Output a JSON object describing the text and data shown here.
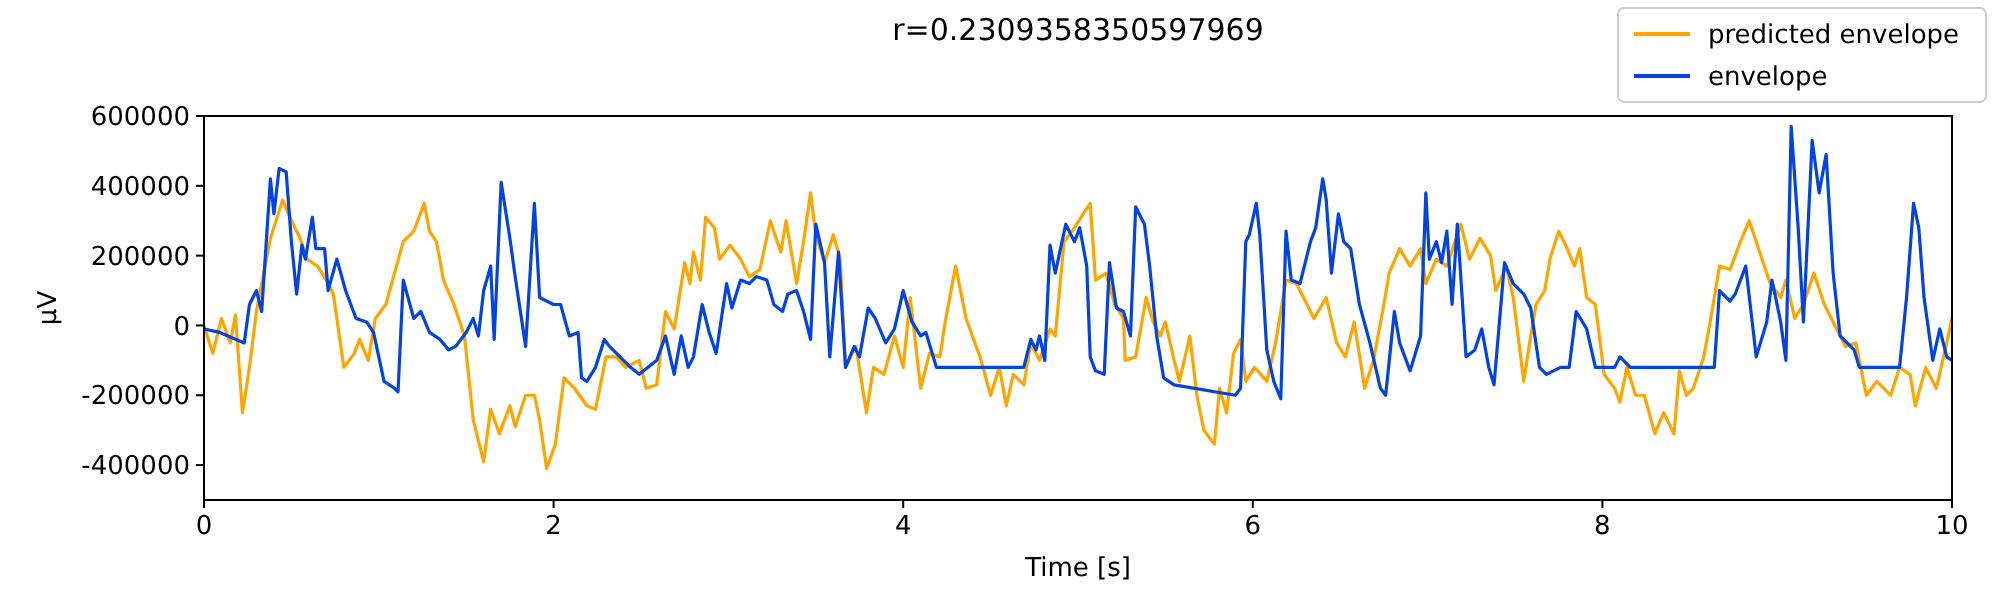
{
  "chart_data": {
    "type": "line",
    "title": "r=0.2309358350597969",
    "xlabel": "Time [s]",
    "ylabel": "µV",
    "xlim": [
      0,
      10
    ],
    "xticks": [
      0,
      2,
      4,
      6,
      8,
      10
    ],
    "ylim": [
      -500000,
      600000
    ],
    "yticks": [
      -400000,
      -200000,
      0,
      200000,
      400000,
      600000
    ],
    "legend": "top right",
    "grid": false,
    "line_style": "solid",
    "marker": "none",
    "series": [
      {
        "name": "predicted envelope",
        "color": "#ffa500",
        "x": [
          0,
          0.05,
          0.1,
          0.15,
          0.18,
          0.22,
          0.26,
          0.3,
          0.38,
          0.45,
          0.5,
          0.55,
          0.59,
          0.65,
          0.7,
          0.74,
          0.78,
          0.8,
          0.86,
          0.89,
          0.94,
          0.98,
          1.04,
          1.14,
          1.2,
          1.26,
          1.29,
          1.33,
          1.37,
          1.43,
          1.49,
          1.54,
          1.6,
          1.64,
          1.69,
          1.75,
          1.78,
          1.84,
          1.89,
          1.92,
          1.96,
          2.01,
          2.06,
          2.12,
          2.19,
          2.24,
          2.3,
          2.36,
          2.41,
          2.49,
          2.53,
          2.59,
          2.64,
          2.69,
          2.75,
          2.78,
          2.8,
          2.84,
          2.87,
          2.92,
          2.95,
          3.01,
          3.07,
          3.12,
          3.18,
          3.24,
          3.3,
          3.33,
          3.39,
          3.43,
          3.47,
          3.5,
          3.55,
          3.6,
          3.64,
          3.67,
          3.73,
          3.79,
          3.83,
          3.89,
          3.95,
          4.0,
          4.04,
          4.1,
          4.15,
          4.21,
          4.24,
          4.3,
          4.36,
          4.41,
          4.44,
          4.5,
          4.55,
          4.59,
          4.63,
          4.69,
          4.73,
          4.78,
          4.84,
          4.87,
          4.92,
          4.98,
          5.03,
          5.07,
          5.1,
          5.16,
          5.21,
          5.26,
          5.27,
          5.33,
          5.39,
          5.43,
          5.47,
          5.5,
          5.55,
          5.58,
          5.64,
          5.68,
          5.72,
          5.78,
          5.81,
          5.85,
          5.89,
          5.93,
          5.96,
          6.01,
          6.08,
          6.13,
          6.19,
          6.25,
          6.3,
          6.35,
          6.42,
          6.48,
          6.53,
          6.58,
          6.64,
          6.69,
          6.75,
          6.78,
          6.84,
          6.9,
          6.96,
          6.99,
          7.05,
          7.11,
          7.19,
          7.24,
          7.3,
          7.36,
          7.39,
          7.45,
          7.49,
          7.55,
          7.59,
          7.62,
          7.67,
          7.7,
          7.75,
          7.79,
          7.84,
          7.87,
          7.91,
          7.96,
          8.01,
          8.07,
          8.1,
          8.14,
          8.19,
          8.24,
          8.3,
          8.35,
          8.41,
          8.44,
          8.48,
          8.52,
          8.58,
          8.62,
          8.67,
          8.73,
          8.79,
          8.84,
          8.9,
          8.96,
          9.02,
          9.05,
          9.1,
          9.15,
          9.21,
          9.27,
          9.32,
          9.39,
          9.45,
          9.51,
          9.57,
          9.65,
          9.7,
          9.76,
          9.79,
          9.85,
          9.91,
          9.97,
          10.0
        ],
        "values": [
          0,
          -80000,
          20000,
          -50000,
          30000,
          -250000,
          -120000,
          40000,
          250000,
          360000,
          300000,
          250000,
          190000,
          170000,
          130000,
          90000,
          -50000,
          -120000,
          -80000,
          -40000,
          -100000,
          20000,
          60000,
          240000,
          270000,
          350000,
          270000,
          240000,
          130000,
          60000,
          -30000,
          -270000,
          -390000,
          -240000,
          -310000,
          -230000,
          -290000,
          -200000,
          -200000,
          -270000,
          -410000,
          -340000,
          -150000,
          -180000,
          -230000,
          -240000,
          -90000,
          -90000,
          -120000,
          -100000,
          -180000,
          -170000,
          40000,
          -10000,
          180000,
          120000,
          210000,
          130000,
          310000,
          280000,
          190000,
          230000,
          190000,
          140000,
          160000,
          300000,
          210000,
          300000,
          120000,
          240000,
          380000,
          260000,
          180000,
          260000,
          190000,
          -120000,
          -60000,
          -250000,
          -120000,
          -140000,
          -30000,
          -120000,
          80000,
          -180000,
          -80000,
          -90000,
          10000,
          170000,
          20000,
          -50000,
          -90000,
          -200000,
          -120000,
          -230000,
          -140000,
          -170000,
          -50000,
          -100000,
          -10000,
          -30000,
          240000,
          280000,
          320000,
          350000,
          130000,
          150000,
          60000,
          20000,
          -100000,
          -90000,
          80000,
          10000,
          -30000,
          10000,
          -100000,
          -160000,
          -30000,
          -200000,
          -300000,
          -340000,
          -180000,
          -250000,
          -80000,
          -40000,
          -160000,
          -120000,
          -160000,
          -50000,
          130000,
          120000,
          70000,
          20000,
          80000,
          -50000,
          -90000,
          10000,
          -180000,
          -100000,
          60000,
          150000,
          220000,
          170000,
          220000,
          120000,
          190000,
          170000,
          290000,
          190000,
          250000,
          200000,
          100000,
          170000,
          80000,
          -160000,
          -30000,
          60000,
          100000,
          190000,
          270000,
          230000,
          170000,
          220000,
          80000,
          60000,
          -140000,
          -180000,
          -220000,
          -120000,
          -200000,
          -200000,
          -310000,
          -250000,
          -310000,
          -130000,
          -200000,
          -180000,
          -90000,
          20000,
          170000,
          160000,
          240000,
          300000,
          210000,
          120000,
          80000,
          130000,
          20000,
          60000,
          150000,
          60000,
          10000,
          -60000,
          -50000,
          -200000,
          -160000,
          -200000,
          -120000,
          -140000,
          -230000,
          -120000,
          -180000,
          -50000,
          20000
        ]
      },
      {
        "name": "envelope",
        "color": "#0343df",
        "x": [
          0,
          0.09,
          0.23,
          0.26,
          0.3,
          0.33,
          0.38,
          0.4,
          0.43,
          0.47,
          0.5,
          0.53,
          0.56,
          0.58,
          0.62,
          0.64,
          0.69,
          0.71,
          0.76,
          0.81,
          0.87,
          0.93,
          0.97,
          1.03,
          1.09,
          1.11,
          1.14,
          1.2,
          1.24,
          1.29,
          1.35,
          1.4,
          1.44,
          1.5,
          1.54,
          1.57,
          1.6,
          1.64,
          1.66,
          1.7,
          1.75,
          1.78,
          1.84,
          1.89,
          1.92,
          2.0,
          2.04,
          2.09,
          2.14,
          2.16,
          2.19,
          2.24,
          2.29,
          2.32,
          2.38,
          2.44,
          2.49,
          2.59,
          2.64,
          2.69,
          2.73,
          2.77,
          2.8,
          2.85,
          2.89,
          2.93,
          2.99,
          3.02,
          3.07,
          3.12,
          3.16,
          3.22,
          3.26,
          3.31,
          3.34,
          3.39,
          3.43,
          3.47,
          3.5,
          3.55,
          3.58,
          3.63,
          3.67,
          3.72,
          3.75,
          3.8,
          3.84,
          3.9,
          3.95,
          4.0,
          4.05,
          4.1,
          4.13,
          4.19,
          4.23,
          4.69,
          4.73,
          4.76,
          4.78,
          4.81,
          4.84,
          4.87,
          4.93,
          4.98,
          5.01,
          5.05,
          5.07,
          5.1,
          5.15,
          5.18,
          5.22,
          5.26,
          5.3,
          5.33,
          5.38,
          5.41,
          5.45,
          5.49,
          5.55,
          5.9,
          5.93,
          5.96,
          5.98,
          6.02,
          6.04,
          6.08,
          6.12,
          6.16,
          6.19,
          6.22,
          6.27,
          6.33,
          6.36,
          6.4,
          6.42,
          6.45,
          6.49,
          6.52,
          6.56,
          6.61,
          6.67,
          6.73,
          6.76,
          6.81,
          6.84,
          6.9,
          6.96,
          6.99,
          7.01,
          7.05,
          7.08,
          7.11,
          7.14,
          7.17,
          7.22,
          7.27,
          7.31,
          7.35,
          7.38,
          7.44,
          7.49,
          7.55,
          7.59,
          7.64,
          7.68,
          7.76,
          7.81,
          7.85,
          7.91,
          7.96,
          8.07,
          8.1,
          8.16,
          8.64,
          8.67,
          8.73,
          8.76,
          8.82,
          8.88,
          8.94,
          8.97,
          9.02,
          9.05,
          9.08,
          9.12,
          9.15,
          9.2,
          9.24,
          9.28,
          9.32,
          9.36,
          9.44,
          9.47,
          9.7,
          9.74,
          9.78,
          9.81,
          9.84,
          9.89,
          9.93,
          9.97,
          10.0
        ],
        "values": [
          -10000,
          -20000,
          -50000,
          60000,
          100000,
          40000,
          420000,
          320000,
          450000,
          440000,
          240000,
          90000,
          230000,
          190000,
          310000,
          220000,
          220000,
          100000,
          190000,
          100000,
          20000,
          10000,
          -20000,
          -160000,
          -180000,
          -190000,
          130000,
          20000,
          40000,
          -20000,
          -40000,
          -70000,
          -60000,
          -20000,
          20000,
          -30000,
          100000,
          170000,
          -40000,
          410000,
          250000,
          140000,
          -60000,
          350000,
          80000,
          60000,
          60000,
          -30000,
          -20000,
          -150000,
          -160000,
          -120000,
          -40000,
          -60000,
          -90000,
          -120000,
          -140000,
          -100000,
          -30000,
          -140000,
          -30000,
          -120000,
          -90000,
          60000,
          -20000,
          -80000,
          120000,
          50000,
          130000,
          120000,
          140000,
          130000,
          60000,
          40000,
          90000,
          100000,
          40000,
          -40000,
          290000,
          180000,
          -90000,
          210000,
          -120000,
          -60000,
          -90000,
          50000,
          20000,
          -50000,
          -10000,
          100000,
          10000,
          -30000,
          -20000,
          -120000,
          -120000,
          -120000,
          -40000,
          -70000,
          -30000,
          -100000,
          230000,
          150000,
          290000,
          240000,
          280000,
          170000,
          -90000,
          -130000,
          -140000,
          180000,
          50000,
          40000,
          -30000,
          340000,
          290000,
          170000,
          -30000,
          -150000,
          -170000,
          -200000,
          -180000,
          240000,
          260000,
          350000,
          260000,
          -70000,
          -160000,
          -210000,
          270000,
          130000,
          120000,
          240000,
          280000,
          420000,
          360000,
          150000,
          320000,
          240000,
          220000,
          60000,
          -50000,
          -180000,
          -200000,
          40000,
          -50000,
          -130000,
          -30000,
          380000,
          190000,
          240000,
          180000,
          270000,
          60000,
          290000,
          -90000,
          -70000,
          -10000,
          -120000,
          -170000,
          180000,
          120000,
          90000,
          50000,
          -120000,
          -140000,
          -120000,
          -120000,
          40000,
          -10000,
          -120000,
          -120000,
          -90000,
          -120000,
          -120000,
          100000,
          70000,
          90000,
          170000,
          -90000,
          10000,
          130000,
          10000,
          -100000,
          570000,
          280000,
          10000,
          530000,
          380000,
          490000,
          150000,
          -30000,
          -70000,
          -120000,
          -120000,
          80000,
          350000,
          280000,
          80000,
          -100000,
          -10000,
          -90000,
          -100000
        ]
      }
    ]
  }
}
